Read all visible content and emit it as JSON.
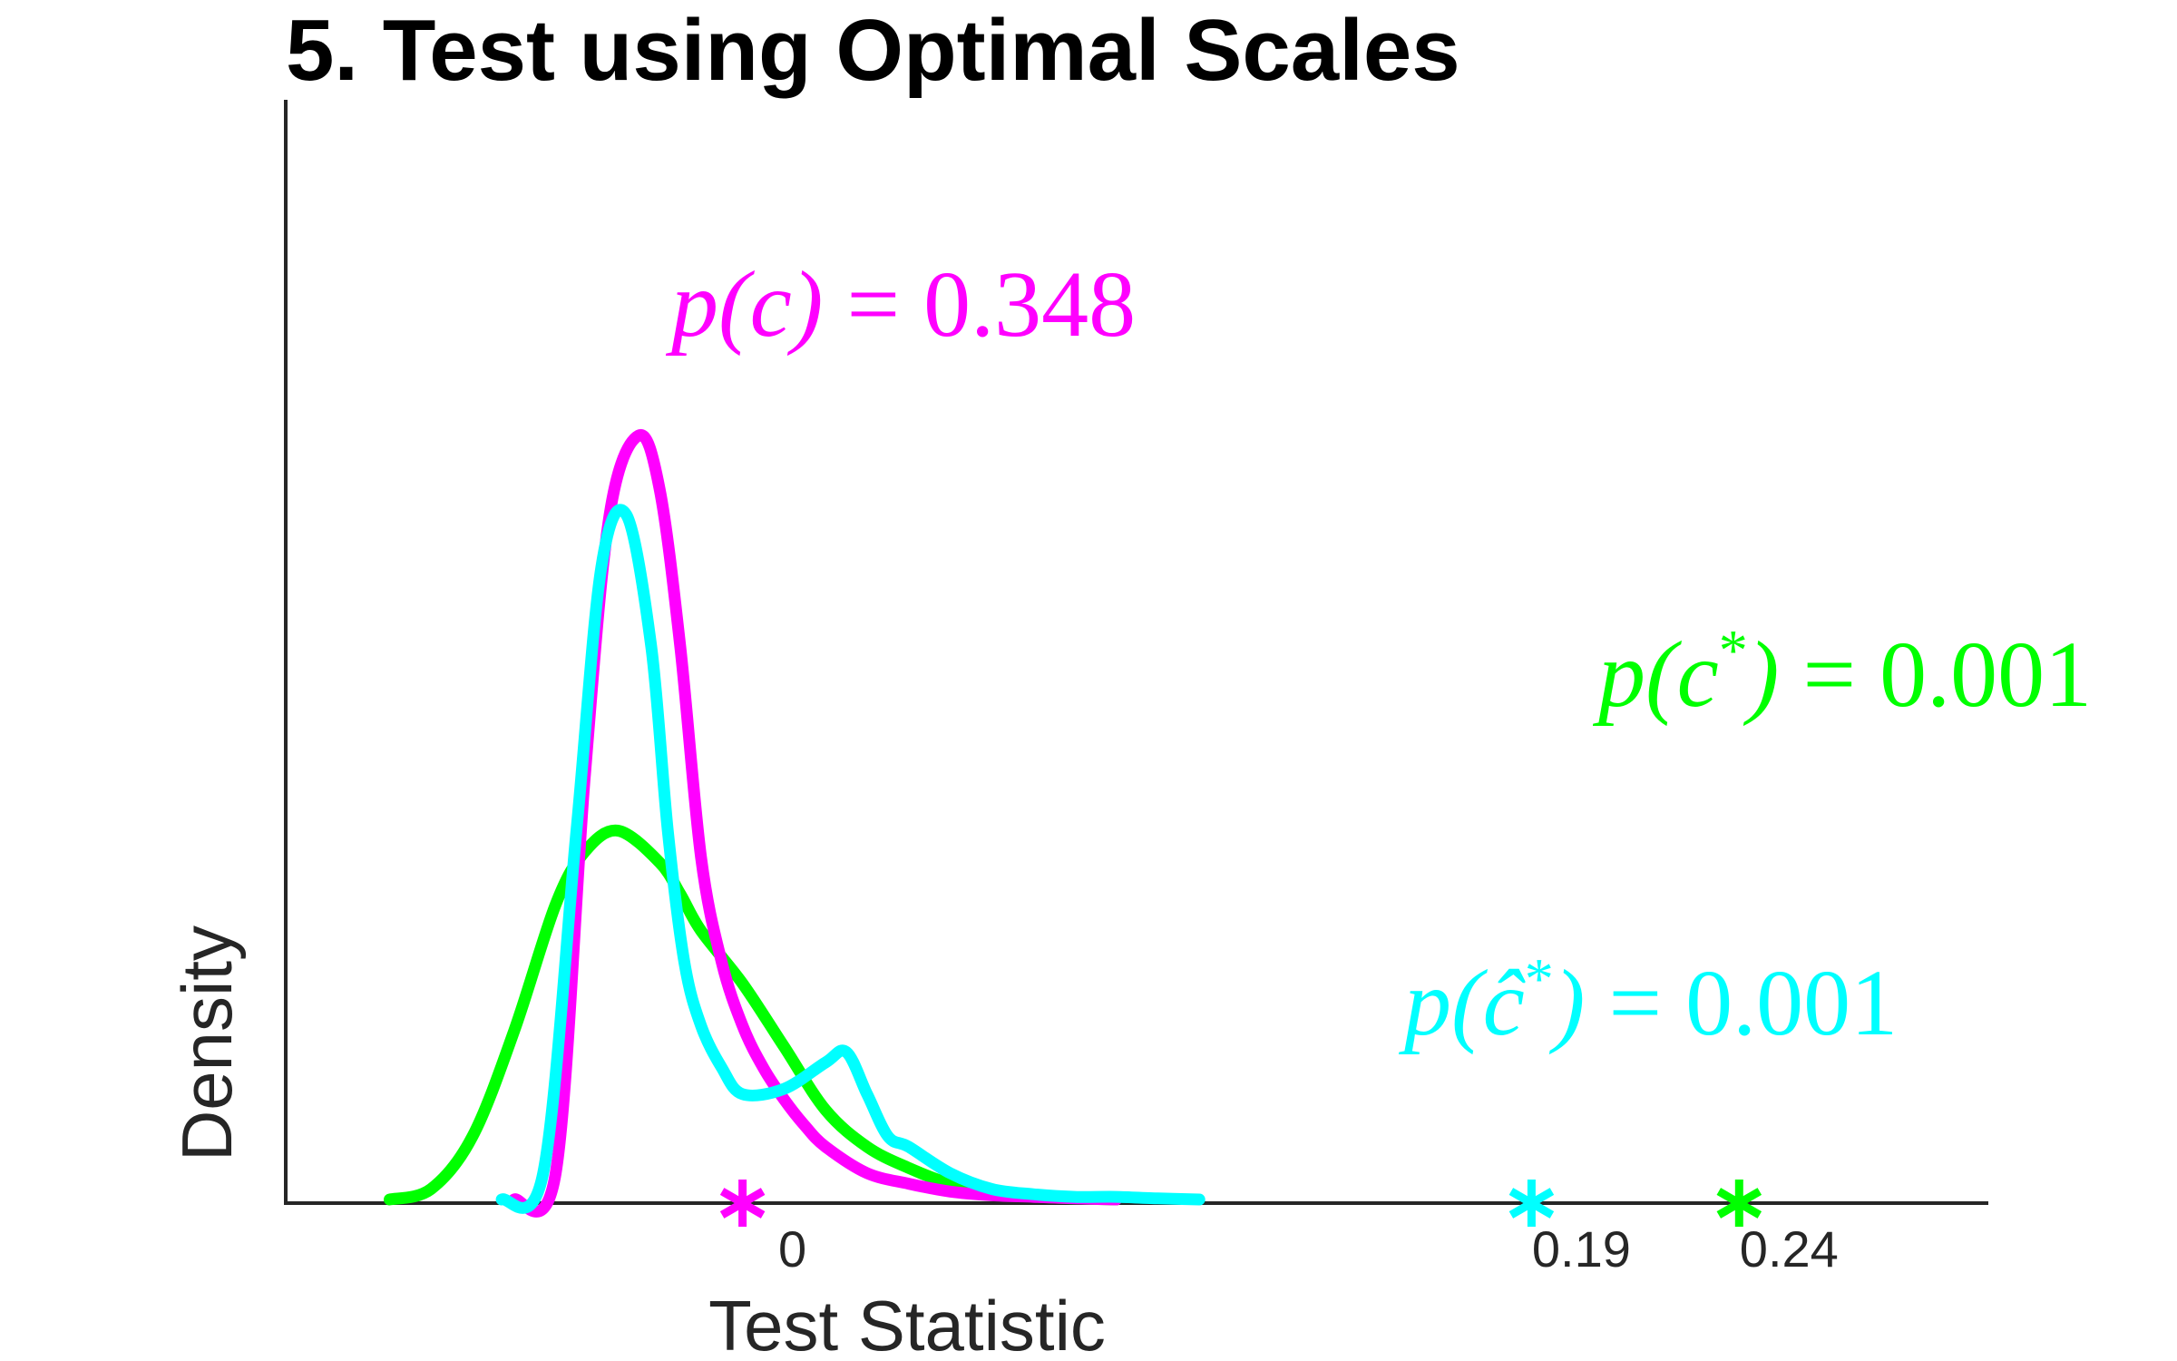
{
  "chart_data": {
    "type": "line",
    "title": "5. Test using Optimal Scales",
    "xlabel": "Test Statistic",
    "ylabel": "Density",
    "xlim": [
      -0.11,
      0.3
    ],
    "ylim": [
      0,
      1.45
    ],
    "x_ticks": [
      {
        "value": 0,
        "label": "0"
      },
      {
        "value": 0.19,
        "label": "0.19"
      },
      {
        "value": 0.24,
        "label": "0.24"
      }
    ],
    "grid": false,
    "series": [
      {
        "color": "#ff00ff",
        "x": [
          -0.055,
          -0.045,
          -0.038,
          -0.032,
          -0.025,
          -0.02,
          -0.015,
          -0.01,
          -0.005,
          0.0,
          0.005,
          0.01,
          0.015,
          0.02,
          0.03,
          0.04,
          0.05,
          0.06,
          0.07,
          0.08,
          0.09
        ],
        "y": [
          0.0,
          0.05,
          0.8,
          1.3,
          1.45,
          1.35,
          1.05,
          0.65,
          0.45,
          0.33,
          0.25,
          0.19,
          0.14,
          0.1,
          0.05,
          0.03,
          0.015,
          0.008,
          0.005,
          0.002,
          0.0
        ]
      },
      {
        "color": "#00ffff",
        "x": [
          -0.058,
          -0.048,
          -0.04,
          -0.034,
          -0.028,
          -0.022,
          -0.018,
          -0.014,
          -0.01,
          -0.005,
          0.0,
          0.01,
          0.02,
          0.025,
          0.03,
          0.035,
          0.04,
          0.05,
          0.06,
          0.07,
          0.08,
          0.09,
          0.1,
          0.11
        ],
        "y": [
          0.0,
          0.05,
          0.7,
          1.2,
          1.3,
          1.05,
          0.7,
          0.45,
          0.33,
          0.25,
          0.2,
          0.21,
          0.26,
          0.28,
          0.2,
          0.12,
          0.1,
          0.05,
          0.02,
          0.01,
          0.005,
          0.005,
          0.002,
          0.0
        ]
      },
      {
        "color": "#00ff00",
        "x": [
          -0.085,
          -0.075,
          -0.065,
          -0.055,
          -0.045,
          -0.038,
          -0.03,
          -0.02,
          -0.015,
          -0.01,
          0.0,
          0.01,
          0.02,
          0.03,
          0.04,
          0.05,
          0.06,
          0.07,
          0.08,
          0.09
        ],
        "y": [
          0.0,
          0.02,
          0.12,
          0.32,
          0.56,
          0.66,
          0.7,
          0.64,
          0.58,
          0.51,
          0.41,
          0.29,
          0.17,
          0.1,
          0.06,
          0.03,
          0.015,
          0.006,
          0.002,
          0.0
        ]
      }
    ],
    "markers": [
      {
        "x": 0.0,
        "color": "#ff00ff",
        "symbol": "*"
      },
      {
        "x": 0.19,
        "color": "#00ffff",
        "symbol": "*"
      },
      {
        "x": 0.24,
        "color": "#00ff00",
        "symbol": "*"
      }
    ],
    "annotations": [
      {
        "color": "#ff00ff",
        "lhs": "p(c)",
        "rhs": "0.348",
        "anchor": "above-peak"
      },
      {
        "color": "#00ff00",
        "lhs": "p(c*)",
        "rhs": "0.001",
        "anchor": "upper-right"
      },
      {
        "color": "#00ffff",
        "lhs": "p(ĉ*)",
        "rhs": "0.001",
        "anchor": "right"
      }
    ]
  }
}
